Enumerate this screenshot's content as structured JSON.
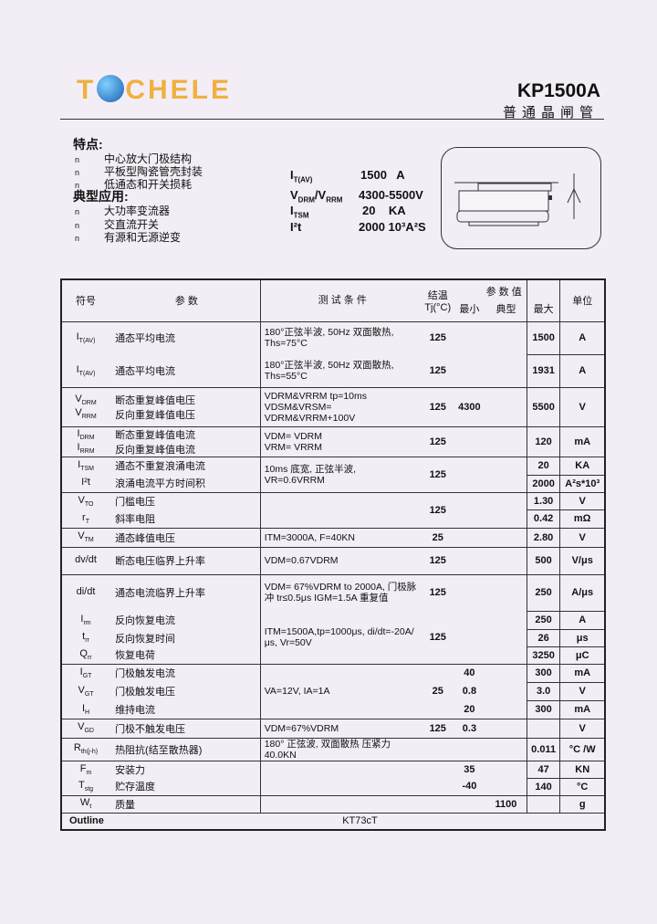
{
  "header": {
    "logo_text_left": "T",
    "logo_text_right": "CHELE",
    "model": "KP1500A",
    "subtitle": "普通晶闸管"
  },
  "features": {
    "title": "特点:",
    "items": [
      "中心放大门极结构",
      "平板型陶瓷管壳封装",
      "低通态和开关损耗"
    ]
  },
  "applications": {
    "title": "典型应用:",
    "items": [
      "大功率变流器",
      "交直流开关",
      "有源和无源逆变"
    ]
  },
  "bullet": "n",
  "specs": [
    {
      "sym": "I",
      "sub": "T(AV)",
      "value": "1500   A"
    },
    {
      "sym": "V",
      "sub": "DRM",
      "sym2": "/V",
      "sub2": "RRM",
      "value": "4300-5500V"
    },
    {
      "sym": "I",
      "sub": "TSM",
      "value": "20    KA"
    },
    {
      "sym": "I²t",
      "sub": "",
      "value": "2000 10³A²S"
    }
  ],
  "table": {
    "headers": {
      "symbol": "符号",
      "param": "参  数",
      "cond": "测 试 条 件",
      "tj": "结温",
      "tj2": "Tj(°C)",
      "values": "参 数 值",
      "min": "最小",
      "typ": "典型",
      "max": "最大",
      "unit": "单位"
    },
    "rows": [
      {
        "sym": "I",
        "sub": "T(AV)",
        "param": "通态平均电流",
        "cond": "180°正弦半波, 50Hz 双面散热, Ths=75°C",
        "tj": "125",
        "min": "",
        "typ": "",
        "max": "1500",
        "unit": "A"
      },
      {
        "sym": "I",
        "sub": "T(AV)",
        "param": "通态平均电流",
        "cond": "180°正弦半波, 50Hz 双面散热, Ths=55°C",
        "tj": "125",
        "min": "",
        "typ": "",
        "max": "1931",
        "unit": "A"
      },
      {
        "sym": "V",
        "sub": "DRM",
        "sym_b": "V",
        "sub_b": "RRM",
        "param": "断态重复峰值电压",
        "param_b": "反向重复峰值电压",
        "cond": "VDRM&VRRM tp=10ms",
        "cond_b": "VDSM&VRSM= VDRM&VRRM+100V",
        "tj": "125",
        "min": "4300",
        "typ": "",
        "max": "5500",
        "unit": "V"
      },
      {
        "sym": "I",
        "sub": "DRM",
        "sym_b": "I",
        "sub_b": "RRM",
        "param": "断态重复峰值电流",
        "param_b": "反向重复峰值电流",
        "cond": "VDM= VDRM",
        "cond_b": "VRM= VRRM",
        "tj": "125",
        "min": "",
        "typ": "",
        "max": "120",
        "unit": "mA"
      },
      {
        "sym": "I",
        "sub": "TSM",
        "param": "通态不重复浪涌电流",
        "cond": "10ms 底宽, 正弦半波,",
        "cond_b": "VR=0.6VRRM",
        "tj": "125",
        "max": "20",
        "unit": "KA"
      },
      {
        "sym": "I²t",
        "sub": "",
        "param": "浪涌电流平方时间积",
        "max": "2000",
        "unit": "A²s*10³"
      },
      {
        "sym": "V",
        "sub": "TO",
        "param": "门槛电压",
        "tj": "125",
        "max": "1.30",
        "unit": "V"
      },
      {
        "sym": "r",
        "sub": "T",
        "param": "斜率电阻",
        "max": "0.42",
        "unit": "mΩ"
      },
      {
        "sym": "V",
        "sub": "TM",
        "param": "通态峰值电压",
        "cond": "ITM=3000A, F=40KN",
        "tj": "25",
        "max": "2.80",
        "unit": "V"
      },
      {
        "sym": "dv/dt",
        "sub": "",
        "param": "断态电压临界上升率",
        "cond": "VDM=0.67VDRM",
        "tj": "125",
        "max": "500",
        "unit": "V/μs"
      },
      {
        "sym": "di/dt",
        "sub": "",
        "param": "通态电流临界上升率",
        "cond": "VDM= 67%VDRM  to 2000A, 门极脉冲 tr≤0.5μs  IGM=1.5A 重复值",
        "tj": "125",
        "max": "250",
        "unit": "A/μs"
      },
      {
        "sym": "I",
        "sub": "rm",
        "param": "反向恢复电流",
        "cond": "ITM=1500A,tp=1000μs, di/dt=-20A/μs, Vr=50V",
        "tj": "125",
        "max": "250",
        "unit": "A"
      },
      {
        "sym": "t",
        "sub": "rr",
        "param": "反向恢复时间",
        "max": "26",
        "unit": "μs"
      },
      {
        "sym": "Q",
        "sub": "rr",
        "param": "恢复电荷",
        "max": "3250",
        "unit": "μC"
      },
      {
        "sym": "I",
        "sub": "GT",
        "param": "门极触发电流",
        "cond": "VA=12V, IA=1A",
        "tj": "25",
        "min": "40",
        "max": "300",
        "unit": "mA"
      },
      {
        "sym": "V",
        "sub": "GT",
        "param": "门极触发电压",
        "min": "0.8",
        "max": "3.0",
        "unit": "V"
      },
      {
        "sym": "I",
        "sub": "H",
        "param": "维持电流",
        "min": "20",
        "max": "300",
        "unit": "mA"
      },
      {
        "sym": "V",
        "sub": "GD",
        "param": "门极不触发电压",
        "cond": "VDM=67%VDRM",
        "tj": "125",
        "min": "0.3",
        "max": "",
        "unit": "V"
      },
      {
        "sym": "R",
        "sub": "th(j-h)",
        "param": "热阻抗(结至散热器)",
        "cond": "180° 正弦波, 双面散热 压紧力 40.0KN",
        "max": "0.011",
        "unit": "°C /W"
      },
      {
        "sym": "F",
        "sub": "m",
        "param": "安装力",
        "min": "35",
        "max": "47",
        "unit": "KN"
      },
      {
        "sym": "T",
        "sub": "stg",
        "param": "贮存温度",
        "min": "-40",
        "max": "140",
        "unit": "°C"
      },
      {
        "sym": "W",
        "sub": "t",
        "param": "质量",
        "typ": "1100",
        "unit": "g"
      }
    ],
    "outline_label": "Outline",
    "outline_value": "KT73cT"
  }
}
